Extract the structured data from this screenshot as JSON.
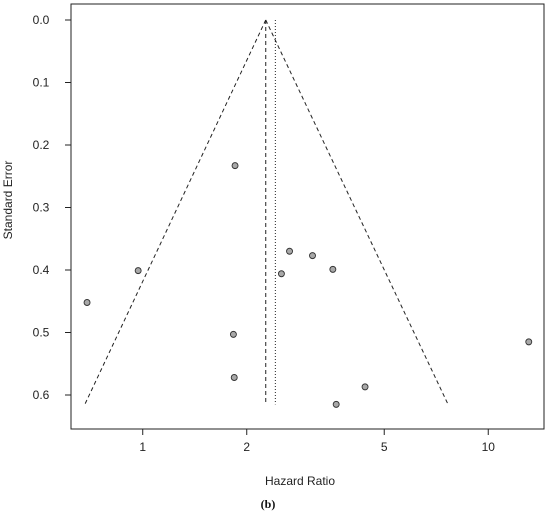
{
  "chart_data": {
    "type": "scatter",
    "subtype": "funnel-plot",
    "xlabel": "Hazard Ratio",
    "ylabel": "Standard Error",
    "panel_label": "(b)",
    "x_scale": "log",
    "x_ticks": [
      1,
      2,
      5,
      10
    ],
    "y_ticks": [
      0.0,
      0.1,
      0.2,
      0.3,
      0.4,
      0.5,
      0.6
    ],
    "y_reversed": true,
    "xlim": [
      0.62,
      14.5
    ],
    "ylim": [
      0.0,
      0.64
    ],
    "grid": false,
    "funnel": {
      "center": 2.27,
      "se_max": 0.615,
      "left_base": 0.68,
      "right_base": 7.65
    },
    "fixed_effect_line": 2.27,
    "random_effect_line": 2.42,
    "points": [
      {
        "x": 1.85,
        "y": 0.233
      },
      {
        "x": 0.97,
        "y": 0.401
      },
      {
        "x": 0.69,
        "y": 0.452
      },
      {
        "x": 2.66,
        "y": 0.37
      },
      {
        "x": 3.1,
        "y": 0.377
      },
      {
        "x": 2.52,
        "y": 0.406
      },
      {
        "x": 3.55,
        "y": 0.399
      },
      {
        "x": 1.83,
        "y": 0.503
      },
      {
        "x": 1.84,
        "y": 0.572
      },
      {
        "x": 3.63,
        "y": 0.615
      },
      {
        "x": 4.4,
        "y": 0.587
      },
      {
        "x": 13.1,
        "y": 0.515
      }
    ],
    "colors": {
      "point_fill": "#a8a8a8",
      "point_stroke": "#333333",
      "lines": "#222222",
      "frame": "#222222"
    }
  }
}
